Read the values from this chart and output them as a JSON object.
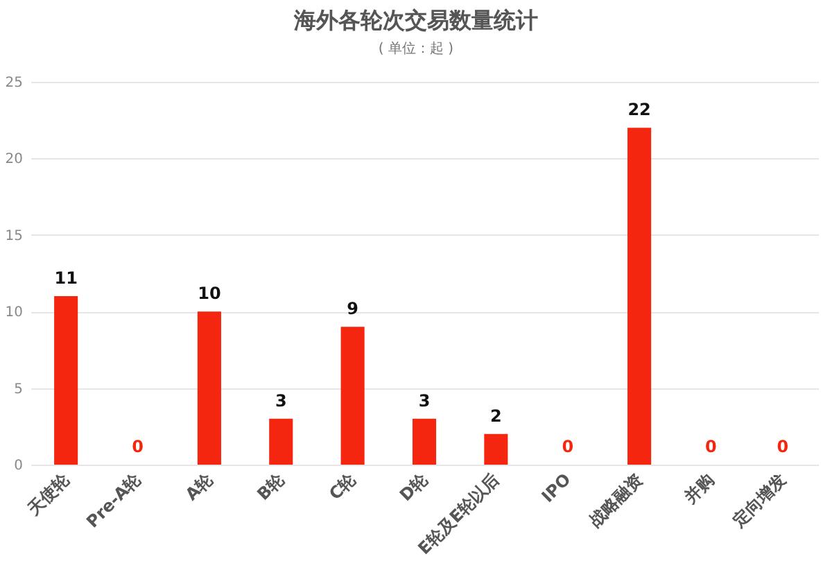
{
  "chart_data": {
    "type": "bar",
    "title": "海外各轮次交易数量统计",
    "subtitle": "( 单位：起 )",
    "categories": [
      "天使轮",
      "Pre-A轮",
      "A轮",
      "B轮",
      "C轮",
      "D轮",
      "E轮及E轮以后",
      "IPO",
      "战略融资",
      "并购",
      "定向增发"
    ],
    "values": [
      11,
      0,
      10,
      3,
      9,
      3,
      2,
      0,
      22,
      0,
      0
    ],
    "color": "#f5260f",
    "ylim": [
      0,
      25
    ],
    "yticks": [
      0,
      5,
      10,
      15,
      20,
      25
    ],
    "grid": "y",
    "data_labels": true
  }
}
